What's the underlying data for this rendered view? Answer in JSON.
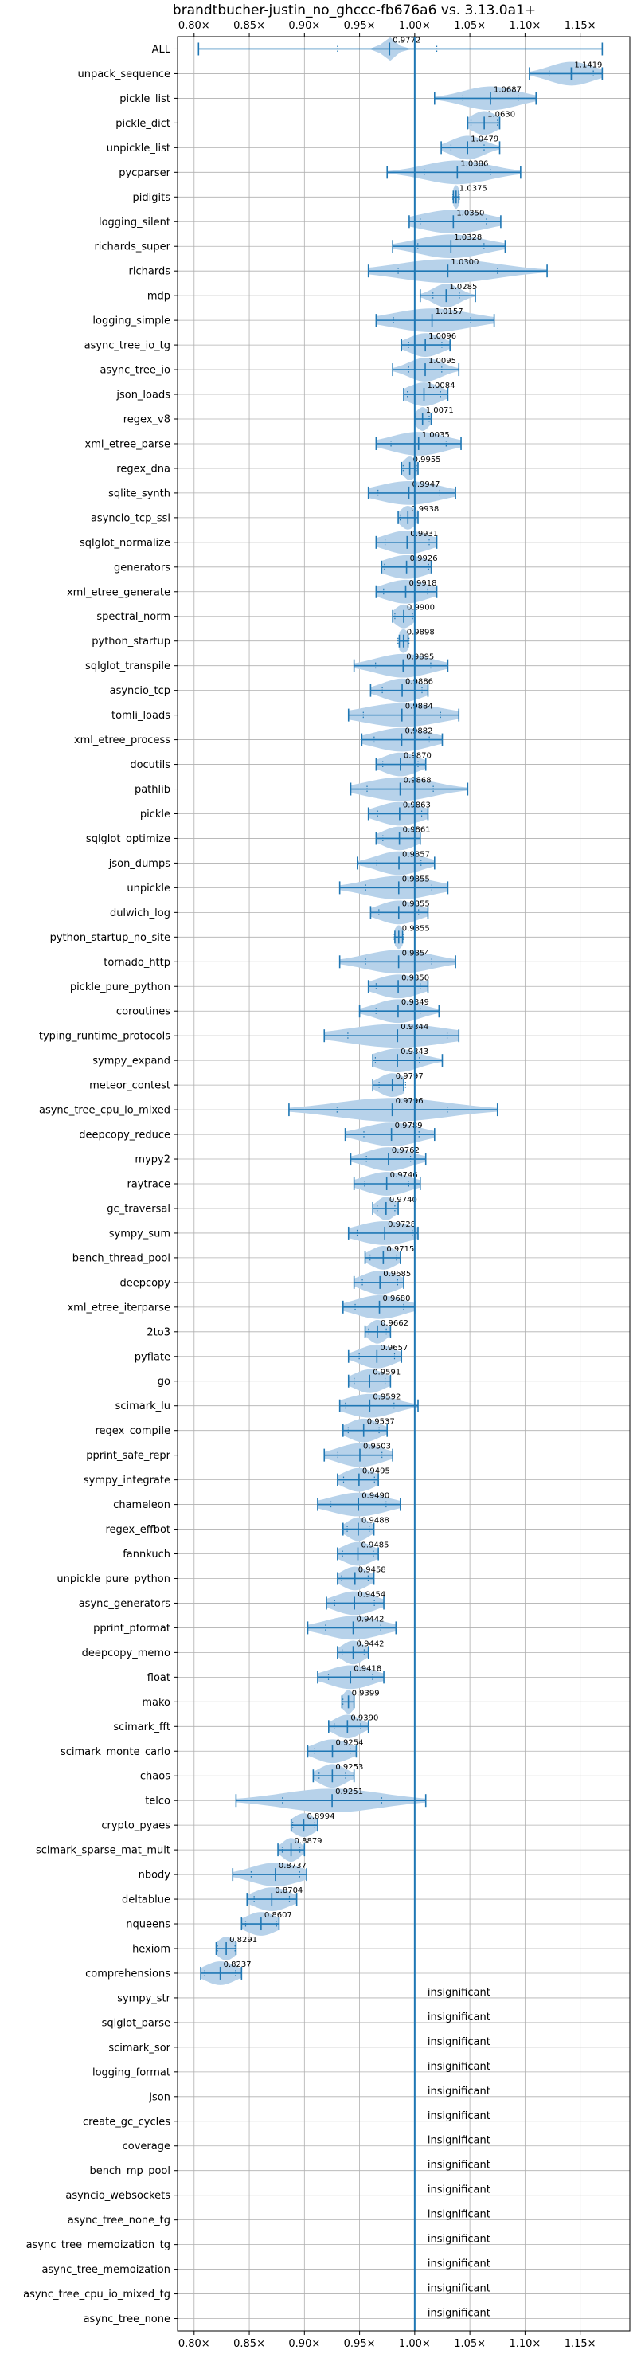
{
  "chart_data": {
    "type": "violin",
    "title": "brandtbucher-justin_no_ghccc-fb676a6 vs. 3.13.0a1+",
    "xlim": [
      0.785,
      1.195
    ],
    "xticks": [
      0.8,
      0.85,
      0.9,
      0.95,
      1.0,
      1.05,
      1.1,
      1.15
    ],
    "xtick_labels": [
      "0.80×",
      "0.85×",
      "0.90×",
      "0.95×",
      "1.00×",
      "1.05×",
      "1.10×",
      "1.15×"
    ],
    "reference_line": 1.0,
    "grid": true,
    "colors": {
      "violin_fill": "#b7d2ea",
      "violin_line": "#1f77b4",
      "grid": "#b0b0b0"
    },
    "insignificant_label": "insignificant",
    "benchmarks": [
      {
        "name": "ALL",
        "value": 0.9772,
        "label": "0.9772",
        "min": 0.804,
        "max": 1.17,
        "spread": 0.006,
        "q1": 0.93,
        "q3": 1.02
      },
      {
        "name": "unpack_sequence",
        "value": 1.1419,
        "label": "1.1419",
        "min": 1.104,
        "max": 1.17,
        "spread": 0.02
      },
      {
        "name": "pickle_list",
        "value": 1.0687,
        "label": "1.0687",
        "min": 1.018,
        "max": 1.11,
        "spread": 0.025
      },
      {
        "name": "pickle_dict",
        "value": 1.063,
        "label": "1.0630",
        "min": 1.048,
        "max": 1.077,
        "spread": 0.012
      },
      {
        "name": "unpickle_list",
        "value": 1.0479,
        "label": "1.0479",
        "min": 1.024,
        "max": 1.077,
        "spread": 0.015
      },
      {
        "name": "pycparser",
        "value": 1.0386,
        "label": "1.0386",
        "min": 0.975,
        "max": 1.096,
        "spread": 0.03
      },
      {
        "name": "pidigits",
        "value": 1.0375,
        "label": "1.0375",
        "min": 1.035,
        "max": 1.04,
        "spread": 0.003
      },
      {
        "name": "logging_silent",
        "value": 1.035,
        "label": "1.0350",
        "min": 0.995,
        "max": 1.078,
        "spread": 0.03
      },
      {
        "name": "richards_super",
        "value": 1.0328,
        "label": "1.0328",
        "min": 0.98,
        "max": 1.082,
        "spread": 0.03
      },
      {
        "name": "richards",
        "value": 1.03,
        "label": "1.0300",
        "min": 0.958,
        "max": 1.12,
        "spread": 0.045
      },
      {
        "name": "mdp",
        "value": 1.0285,
        "label": "1.0285",
        "min": 1.005,
        "max": 1.055,
        "spread": 0.012
      },
      {
        "name": "logging_simple",
        "value": 1.0157,
        "label": "1.0157",
        "min": 0.965,
        "max": 1.072,
        "spread": 0.035
      },
      {
        "name": "async_tree_io_tg",
        "value": 1.0096,
        "label": "1.0096",
        "min": 0.988,
        "max": 1.032,
        "spread": 0.015
      },
      {
        "name": "async_tree_io",
        "value": 1.0095,
        "label": "1.0095",
        "min": 0.98,
        "max": 1.04,
        "spread": 0.015
      },
      {
        "name": "json_loads",
        "value": 1.0084,
        "label": "1.0084",
        "min": 0.99,
        "max": 1.03,
        "spread": 0.015
      },
      {
        "name": "regex_v8",
        "value": 1.0071,
        "label": "1.0071",
        "min": 1.0,
        "max": 1.015,
        "spread": 0.006
      },
      {
        "name": "xml_etree_parse",
        "value": 1.0035,
        "label": "1.0035",
        "min": 0.965,
        "max": 1.042,
        "spread": 0.025
      },
      {
        "name": "regex_dna",
        "value": 0.9955,
        "label": "0.9955",
        "min": 0.988,
        "max": 1.003,
        "spread": 0.006
      },
      {
        "name": "sqlite_synth",
        "value": 0.9947,
        "label": "0.9947",
        "min": 0.958,
        "max": 1.037,
        "spread": 0.028
      },
      {
        "name": "asyncio_tcp_ssl",
        "value": 0.9938,
        "label": "0.9938",
        "min": 0.985,
        "max": 1.003,
        "spread": 0.007
      },
      {
        "name": "sqlglot_normalize",
        "value": 0.9931,
        "label": "0.9931",
        "min": 0.965,
        "max": 1.02,
        "spread": 0.02
      },
      {
        "name": "generators",
        "value": 0.9926,
        "label": "0.9926",
        "min": 0.97,
        "max": 1.015,
        "spread": 0.02
      },
      {
        "name": "xml_etree_generate",
        "value": 0.9918,
        "label": "0.9918",
        "min": 0.965,
        "max": 1.02,
        "spread": 0.02
      },
      {
        "name": "spectral_norm",
        "value": 0.99,
        "label": "0.9900",
        "min": 0.98,
        "max": 1.0,
        "spread": 0.008
      },
      {
        "name": "python_startup",
        "value": 0.9898,
        "label": "0.9898",
        "min": 0.986,
        "max": 0.994,
        "spread": 0.005
      },
      {
        "name": "sqlglot_transpile",
        "value": 0.9895,
        "label": "0.9895",
        "min": 0.945,
        "max": 1.03,
        "spread": 0.025
      },
      {
        "name": "asyncio_tcp",
        "value": 0.9886,
        "label": "0.9886",
        "min": 0.96,
        "max": 1.012,
        "spread": 0.018
      },
      {
        "name": "tomli_loads",
        "value": 0.9884,
        "label": "0.9884",
        "min": 0.94,
        "max": 1.04,
        "spread": 0.035
      },
      {
        "name": "xml_etree_process",
        "value": 0.9882,
        "label": "0.9882",
        "min": 0.952,
        "max": 1.025,
        "spread": 0.025
      },
      {
        "name": "docutils",
        "value": 0.987,
        "label": "0.9870",
        "min": 0.965,
        "max": 1.01,
        "spread": 0.016
      },
      {
        "name": "pathlib",
        "value": 0.9868,
        "label": "0.9868",
        "min": 0.942,
        "max": 1.048,
        "spread": 0.03
      },
      {
        "name": "pickle",
        "value": 0.9863,
        "label": "0.9863",
        "min": 0.958,
        "max": 1.012,
        "spread": 0.02
      },
      {
        "name": "sqlglot_optimize",
        "value": 0.9861,
        "label": "0.9861",
        "min": 0.965,
        "max": 1.005,
        "spread": 0.015
      },
      {
        "name": "json_dumps",
        "value": 0.9857,
        "label": "0.9857",
        "min": 0.948,
        "max": 1.018,
        "spread": 0.02
      },
      {
        "name": "unpickle",
        "value": 0.9855,
        "label": "0.9855",
        "min": 0.932,
        "max": 1.03,
        "spread": 0.03
      },
      {
        "name": "dulwich_log",
        "value": 0.9855,
        "label": "0.9855",
        "min": 0.96,
        "max": 1.012,
        "spread": 0.018
      },
      {
        "name": "python_startup_no_site",
        "value": 0.9855,
        "label": "0.9855",
        "min": 0.982,
        "max": 0.989,
        "spread": 0.004
      },
      {
        "name": "tornado_http",
        "value": 0.9854,
        "label": "0.9854",
        "min": 0.932,
        "max": 1.037,
        "spread": 0.03
      },
      {
        "name": "pickle_pure_python",
        "value": 0.985,
        "label": "0.9850",
        "min": 0.958,
        "max": 1.012,
        "spread": 0.02
      },
      {
        "name": "coroutines",
        "value": 0.9849,
        "label": "0.9849",
        "min": 0.95,
        "max": 1.022,
        "spread": 0.02
      },
      {
        "name": "typing_runtime_protocols",
        "value": 0.9844,
        "label": "0.9844",
        "min": 0.918,
        "max": 1.04,
        "spread": 0.045
      },
      {
        "name": "sympy_expand",
        "value": 0.9843,
        "label": "0.9843",
        "min": 0.962,
        "max": 1.025,
        "spread": 0.02
      },
      {
        "name": "meteor_contest",
        "value": 0.9797,
        "label": "0.9797",
        "min": 0.962,
        "max": 0.99,
        "spread": 0.012
      },
      {
        "name": "async_tree_cpu_io_mixed",
        "value": 0.9796,
        "label": "0.9796",
        "min": 0.886,
        "max": 1.075,
        "spread": 0.05
      },
      {
        "name": "deepcopy_reduce",
        "value": 0.9789,
        "label": "0.9789",
        "min": 0.937,
        "max": 1.018,
        "spread": 0.025
      },
      {
        "name": "mypy2",
        "value": 0.9762,
        "label": "0.9762",
        "min": 0.942,
        "max": 1.01,
        "spread": 0.02
      },
      {
        "name": "raytrace",
        "value": 0.9746,
        "label": "0.9746",
        "min": 0.945,
        "max": 1.005,
        "spread": 0.02
      },
      {
        "name": "gc_traversal",
        "value": 0.974,
        "label": "0.9740",
        "min": 0.962,
        "max": 0.985,
        "spread": 0.008
      },
      {
        "name": "sympy_sum",
        "value": 0.9728,
        "label": "0.9728",
        "min": 0.94,
        "max": 1.003,
        "spread": 0.025
      },
      {
        "name": "bench_thread_pool",
        "value": 0.9715,
        "label": "0.9715",
        "min": 0.955,
        "max": 0.987,
        "spread": 0.012
      },
      {
        "name": "deepcopy",
        "value": 0.9685,
        "label": "0.9685",
        "min": 0.945,
        "max": 0.99,
        "spread": 0.016
      },
      {
        "name": "xml_etree_iterparse",
        "value": 0.968,
        "label": "0.9680",
        "min": 0.935,
        "max": 1.0,
        "spread": 0.022
      },
      {
        "name": "2to3",
        "value": 0.9662,
        "label": "0.9662",
        "min": 0.955,
        "max": 0.978,
        "spread": 0.008
      },
      {
        "name": "pyflate",
        "value": 0.9657,
        "label": "0.9657",
        "min": 0.94,
        "max": 0.988,
        "spread": 0.016
      },
      {
        "name": "go",
        "value": 0.9591,
        "label": "0.9591",
        "min": 0.94,
        "max": 0.978,
        "spread": 0.014
      },
      {
        "name": "scimark_lu",
        "value": 0.9592,
        "label": "0.9592",
        "min": 0.932,
        "max": 1.003,
        "spread": 0.022
      },
      {
        "name": "regex_compile",
        "value": 0.9537,
        "label": "0.9537",
        "min": 0.935,
        "max": 0.975,
        "spread": 0.014
      },
      {
        "name": "pprint_safe_repr",
        "value": 0.9503,
        "label": "0.9503",
        "min": 0.918,
        "max": 0.98,
        "spread": 0.02
      },
      {
        "name": "sympy_integrate",
        "value": 0.9495,
        "label": "0.9495",
        "min": 0.93,
        "max": 0.967,
        "spread": 0.014
      },
      {
        "name": "chameleon",
        "value": 0.949,
        "label": "0.9490",
        "min": 0.912,
        "max": 0.987,
        "spread": 0.025
      },
      {
        "name": "regex_effbot",
        "value": 0.9488,
        "label": "0.9488",
        "min": 0.935,
        "max": 0.963,
        "spread": 0.01
      },
      {
        "name": "fannkuch",
        "value": 0.9485,
        "label": "0.9485",
        "min": 0.93,
        "max": 0.967,
        "spread": 0.014
      },
      {
        "name": "unpickle_pure_python",
        "value": 0.9458,
        "label": "0.9458",
        "min": 0.93,
        "max": 0.963,
        "spread": 0.012
      },
      {
        "name": "async_generators",
        "value": 0.9454,
        "label": "0.9454",
        "min": 0.92,
        "max": 0.972,
        "spread": 0.018
      },
      {
        "name": "pprint_pformat",
        "value": 0.9442,
        "label": "0.9442",
        "min": 0.903,
        "max": 0.983,
        "spread": 0.025
      },
      {
        "name": "deepcopy_memo",
        "value": 0.9442,
        "label": "0.9442",
        "min": 0.93,
        "max": 0.958,
        "spread": 0.01
      },
      {
        "name": "float",
        "value": 0.9418,
        "label": "0.9418",
        "min": 0.912,
        "max": 0.972,
        "spread": 0.02
      },
      {
        "name": "mako",
        "value": 0.9399,
        "label": "0.9399",
        "min": 0.934,
        "max": 0.945,
        "spread": 0.005
      },
      {
        "name": "scimark_fft",
        "value": 0.939,
        "label": "0.9390",
        "min": 0.922,
        "max": 0.958,
        "spread": 0.012
      },
      {
        "name": "scimark_monte_carlo",
        "value": 0.9254,
        "label": "0.9254",
        "min": 0.903,
        "max": 0.947,
        "spread": 0.016
      },
      {
        "name": "chaos",
        "value": 0.9253,
        "label": "0.9253",
        "min": 0.908,
        "max": 0.945,
        "spread": 0.012
      },
      {
        "name": "telco",
        "value": 0.9251,
        "label": "0.9251",
        "min": 0.838,
        "max": 1.01,
        "spread": 0.045
      },
      {
        "name": "crypto_pyaes",
        "value": 0.8994,
        "label": "0.8994",
        "min": 0.888,
        "max": 0.912,
        "spread": 0.01
      },
      {
        "name": "scimark_sparse_mat_mult",
        "value": 0.8879,
        "label": "0.8879",
        "min": 0.876,
        "max": 0.9,
        "spread": 0.008
      },
      {
        "name": "nbody",
        "value": 0.8737,
        "label": "0.8737",
        "min": 0.835,
        "max": 0.902,
        "spread": 0.022
      },
      {
        "name": "deltablue",
        "value": 0.8704,
        "label": "0.8704",
        "min": 0.848,
        "max": 0.893,
        "spread": 0.016
      },
      {
        "name": "nqueens",
        "value": 0.8607,
        "label": "0.8607",
        "min": 0.843,
        "max": 0.877,
        "spread": 0.014
      },
      {
        "name": "hexiom",
        "value": 0.8291,
        "label": "0.8291",
        "min": 0.82,
        "max": 0.838,
        "spread": 0.008
      },
      {
        "name": "comprehensions",
        "value": 0.8237,
        "label": "0.8237",
        "min": 0.806,
        "max": 0.843,
        "spread": 0.014
      },
      {
        "name": "sympy_str",
        "insignificant": true
      },
      {
        "name": "sqlglot_parse",
        "insignificant": true
      },
      {
        "name": "scimark_sor",
        "insignificant": true
      },
      {
        "name": "logging_format",
        "insignificant": true
      },
      {
        "name": "json",
        "insignificant": true
      },
      {
        "name": "create_gc_cycles",
        "insignificant": true
      },
      {
        "name": "coverage",
        "insignificant": true
      },
      {
        "name": "bench_mp_pool",
        "insignificant": true
      },
      {
        "name": "asyncio_websockets",
        "insignificant": true
      },
      {
        "name": "async_tree_none_tg",
        "insignificant": true
      },
      {
        "name": "async_tree_memoization_tg",
        "insignificant": true
      },
      {
        "name": "async_tree_memoization",
        "insignificant": true
      },
      {
        "name": "async_tree_cpu_io_mixed_tg",
        "insignificant": true
      },
      {
        "name": "async_tree_none",
        "insignificant": true
      }
    ]
  }
}
